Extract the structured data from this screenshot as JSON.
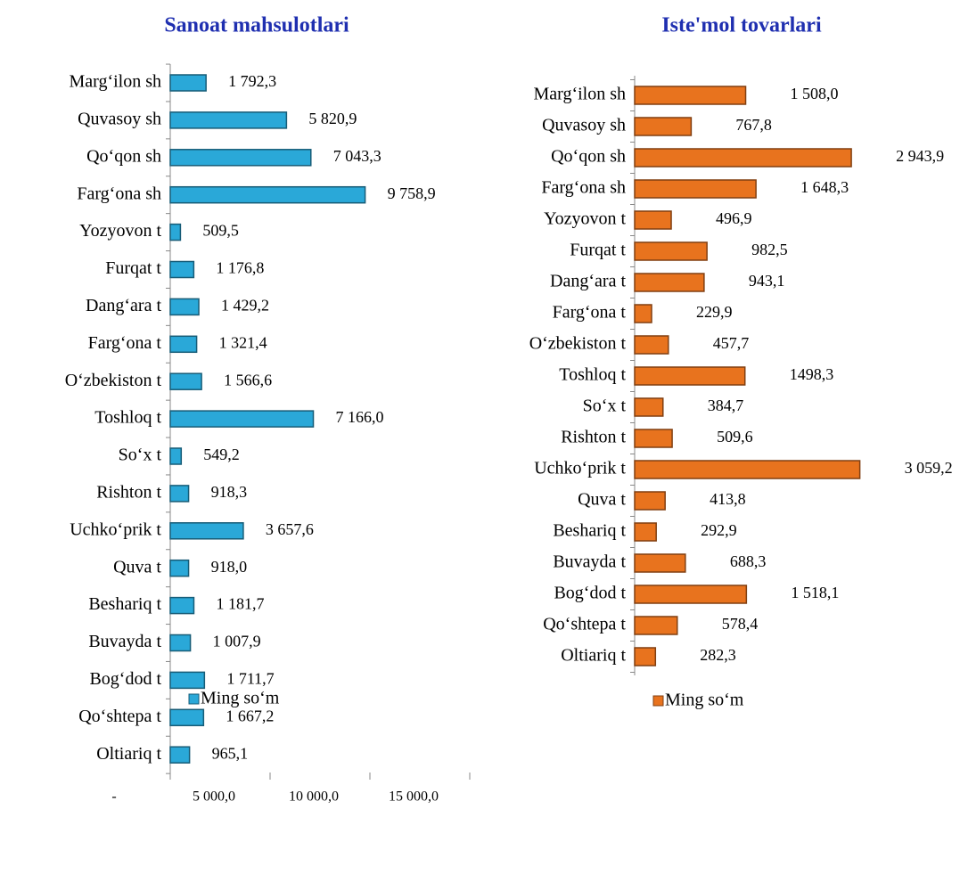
{
  "chart_data": [
    {
      "type": "bar",
      "orientation": "horizontal",
      "title": "Sanoat mahsulotlari",
      "categories": [
        "Marg‘ilon sh",
        "Quvasoy sh",
        "Qo‘qon sh",
        "Farg‘ona sh",
        "Yozyovon t",
        "Furqat t",
        "Dang‘ara t",
        "Farg‘ona t",
        "O‘zbekiston t",
        "Toshloq t",
        "So‘x t",
        "Rishton t",
        "Uchko‘prik t",
        "Quva t",
        "Beshariq t",
        "Buvayda t",
        "Bog‘dod t",
        "Qo‘shtepa t",
        "Oltiariq t"
      ],
      "series": [
        {
          "name": "Ming so‘m",
          "color": "#2aa8d8",
          "values": [
            1792.3,
            5820.9,
            7043.3,
            9758.9,
            509.5,
            1176.8,
            1429.2,
            1321.4,
            1566.6,
            7166.0,
            549.2,
            918.3,
            3657.6,
            918.0,
            1181.7,
            1007.9,
            1711.7,
            1667.2,
            965.1
          ],
          "value_labels": [
            "1 792,3",
            "5 820,9",
            "7 043,3",
            "9 758,9",
            "509,5",
            "1 176,8",
            "1 429,2",
            "1 321,4",
            "1 566,6",
            "7 166,0",
            "549,2",
            "918,3",
            "3 657,6",
            "918,0",
            "1 181,7",
            "1 007,9",
            "1 711,7",
            "1 667,2",
            "965,1"
          ]
        }
      ],
      "xlim": [
        0,
        15000
      ],
      "xticks": [
        {
          "value": 0,
          "label": "-"
        },
        {
          "value": 5000,
          "label": "5 000,0"
        },
        {
          "value": 10000,
          "label": "10 000,0"
        },
        {
          "value": 15000,
          "label": "15 000,0"
        }
      ]
    },
    {
      "type": "bar",
      "orientation": "horizontal",
      "title": "Iste'mol tovarlari",
      "categories": [
        "Marg‘ilon sh",
        "Quvasoy sh",
        "Qo‘qon sh",
        "Farg‘ona sh",
        "Yozyovon t",
        "Furqat t",
        "Dang‘ara t",
        "Farg‘ona t",
        "O‘zbekiston t",
        "Toshloq t",
        "So‘x t",
        "Rishton t",
        "Uchko‘prik t",
        "Quva t",
        "Beshariq t",
        "Buvayda t",
        "Bog‘dod t",
        "Qo‘shtepa t",
        "Oltiariq t"
      ],
      "series": [
        {
          "name": "Ming so‘m",
          "color": "#e8731e",
          "values": [
            1508.0,
            767.8,
            2943.9,
            1648.3,
            496.9,
            982.5,
            943.1,
            229.9,
            457.7,
            1498.3,
            384.7,
            509.6,
            3059.2,
            413.8,
            292.9,
            688.3,
            1518.1,
            578.4,
            282.3
          ],
          "value_labels": [
            "1 508,0",
            "767,8",
            "2 943,9",
            "1 648,3",
            "496,9",
            "982,5",
            "943,1",
            "229,9",
            "457,7",
            "1498,3",
            "384,7",
            "509,6",
            "3 059,2",
            "413,8",
            "292,9",
            "688,3",
            "1 518,1",
            "578,4",
            "282,3"
          ]
        }
      ],
      "xlim": [
        0,
        3500
      ]
    }
  ]
}
